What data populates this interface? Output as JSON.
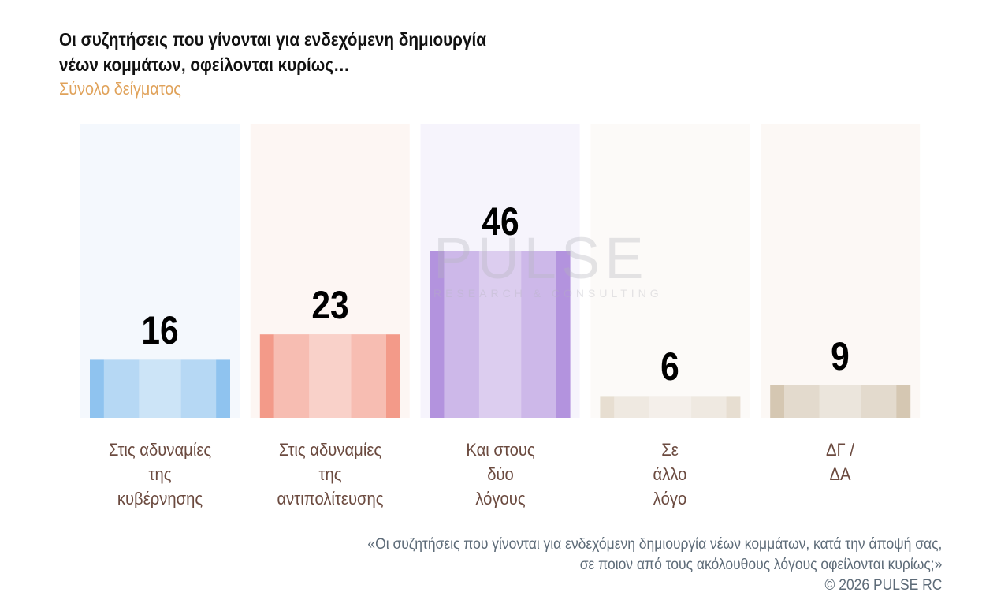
{
  "header": {
    "title_line1": "Οι συζητήσεις που γίνονται για ενδεχόμενη δημιουργία",
    "title_line2": "νέων κομμάτων, οφείλονται κυρίως…",
    "subtitle": "Σύνολο δείγματος"
  },
  "watermark": {
    "brand": "PULSE",
    "tagline": "RESEARCH & CONSULTING"
  },
  "chart_data": {
    "type": "bar",
    "title": "Οι συζητήσεις που γίνονται για ενδεχόμενη δημιουργία νέων κομμάτων, οφείλονται κυρίως…",
    "categories": [
      "Στις αδυναμίες της κυβέρνησης",
      "Στις αδυναμίες της αντιπολίτευσης",
      "Και στους δύο λόγους",
      "Σε άλλο λόγο",
      "ΔΓ / ΔΑ"
    ],
    "category_lines": [
      [
        "Στις αδυναμίες",
        "της",
        "κυβέρνησης"
      ],
      [
        "Στις αδυναμίες",
        "της",
        "αντιπολίτευσης"
      ],
      [
        "Και στους",
        "δύο",
        "λόγους"
      ],
      [
        "Σε",
        "άλλο",
        "λόγο"
      ],
      [
        "ΔΓ /",
        "ΔΑ"
      ]
    ],
    "values": [
      16,
      23,
      46,
      6,
      9
    ],
    "colors": [
      "#8fc3ef",
      "#f39a89",
      "#b393de",
      "#e7ded1",
      "#d5c7b2"
    ],
    "bg_colors": [
      "#f4f8fd",
      "#fdf6f3",
      "#f6f4fc",
      "#fcfaf8",
      "#fcf8f5"
    ],
    "xlabel": "",
    "ylabel": "",
    "ylim": [
      0,
      80
    ],
    "grid": false
  },
  "footer": {
    "question_line1": "«Οι συζητήσεις που γίνονται για ενδεχόμενη δημιουργία νέων κομμάτων, κατά την άποψή σας,",
    "question_line2": "σε ποιον από τους ακόλουθους λόγους οφείλονται κυρίως;»",
    "copyright": "©  2026  PULSE RC"
  }
}
